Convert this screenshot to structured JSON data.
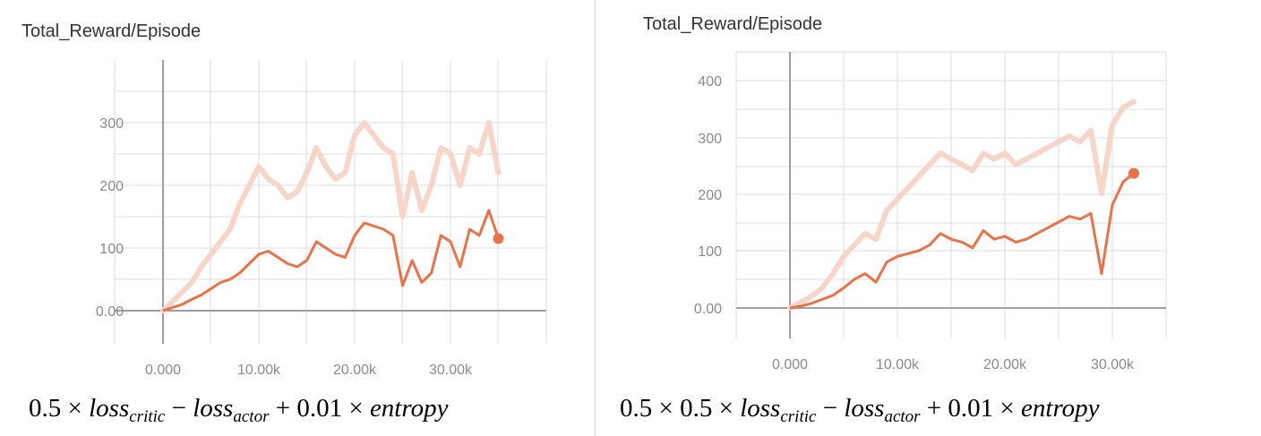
{
  "chart_data": [
    {
      "type": "line",
      "title": "Total_Reward/Episode",
      "xlabel": "",
      "ylabel": "",
      "xlim": [
        -5000,
        40000
      ],
      "ylim": [
        -50,
        400
      ],
      "x_ticks": [
        "0.000",
        "10.00k",
        "20.00k",
        "30.00k"
      ],
      "y_ticks": [
        "0.00",
        "100",
        "200",
        "300"
      ],
      "grid": true,
      "colors": {
        "smoothed": "#e8734a",
        "raw": "#f7d5c8",
        "axis": "#9e9e9e",
        "grid": "#dddddd"
      },
      "x": [
        0,
        1000,
        2000,
        3000,
        4000,
        5000,
        6000,
        7000,
        8000,
        9000,
        10000,
        11000,
        12000,
        13000,
        14000,
        15000,
        16000,
        17000,
        18000,
        19000,
        20000,
        21000,
        22000,
        23000,
        24000,
        25000,
        26000,
        27000,
        28000,
        29000,
        30000,
        31000,
        32000,
        33000,
        34000,
        35000
      ],
      "series": [
        {
          "values": [
            0,
            5,
            10,
            18,
            25,
            35,
            45,
            50,
            60,
            75,
            90,
            95,
            85,
            75,
            70,
            80,
            110,
            100,
            90,
            85,
            120,
            140,
            135,
            130,
            120,
            40,
            80,
            45,
            60,
            120,
            110,
            70,
            130,
            120,
            160,
            115
          ]
        },
        {
          "values": [
            0,
            15,
            30,
            45,
            70,
            90,
            110,
            130,
            170,
            200,
            230,
            210,
            200,
            180,
            190,
            220,
            260,
            230,
            210,
            220,
            280,
            300,
            280,
            260,
            250,
            150,
            220,
            160,
            200,
            260,
            250,
            200,
            260,
            250,
            300,
            220
          ]
        }
      ]
    },
    {
      "type": "line",
      "title": "Total_Reward/Episode",
      "xlabel": "",
      "ylabel": "",
      "xlim": [
        -5000,
        35000
      ],
      "ylim": [
        -50,
        450
      ],
      "x_ticks": [
        "0.000",
        "10.00k",
        "20.00k",
        "30.00k"
      ],
      "y_ticks": [
        "0.00",
        "100",
        "200",
        "300",
        "400"
      ],
      "grid": true,
      "colors": {
        "smoothed": "#e8734a",
        "raw": "#f7d5c8",
        "axis": "#9e9e9e",
        "grid": "#dddddd"
      },
      "x": [
        0,
        1000,
        2000,
        3000,
        4000,
        5000,
        6000,
        7000,
        8000,
        9000,
        10000,
        11000,
        12000,
        13000,
        14000,
        15000,
        16000,
        17000,
        18000,
        19000,
        20000,
        21000,
        22000,
        23000,
        24000,
        25000,
        26000,
        27000,
        28000,
        29000,
        30000,
        31000,
        32000
      ],
      "series": [
        {
          "values": [
            0,
            3,
            8,
            15,
            22,
            35,
            50,
            60,
            45,
            80,
            90,
            95,
            100,
            110,
            130,
            120,
            115,
            105,
            135,
            120,
            125,
            115,
            120,
            130,
            140,
            150,
            160,
            155,
            165,
            60,
            180,
            220,
            235
          ]
        },
        {
          "values": [
            0,
            10,
            20,
            35,
            60,
            90,
            110,
            130,
            120,
            170,
            190,
            210,
            230,
            250,
            270,
            260,
            250,
            240,
            270,
            260,
            270,
            250,
            260,
            270,
            280,
            290,
            300,
            290,
            310,
            200,
            320,
            350,
            360
          ]
        }
      ]
    }
  ],
  "captions": {
    "left": {
      "c1": "0.5 × ",
      "l1": "loss",
      "s1": "critic",
      "m1": " − ",
      "l2": "loss",
      "s2": "actor",
      "m2": " + 0.01 × ",
      "e": "entropy"
    },
    "right": {
      "c1": "0.5 × 0.5 × ",
      "l1": "loss",
      "s1": "critic",
      "m1": " − ",
      "l2": "loss",
      "s2": "actor",
      "m2": " + 0.01 × ",
      "e": "entropy"
    }
  }
}
